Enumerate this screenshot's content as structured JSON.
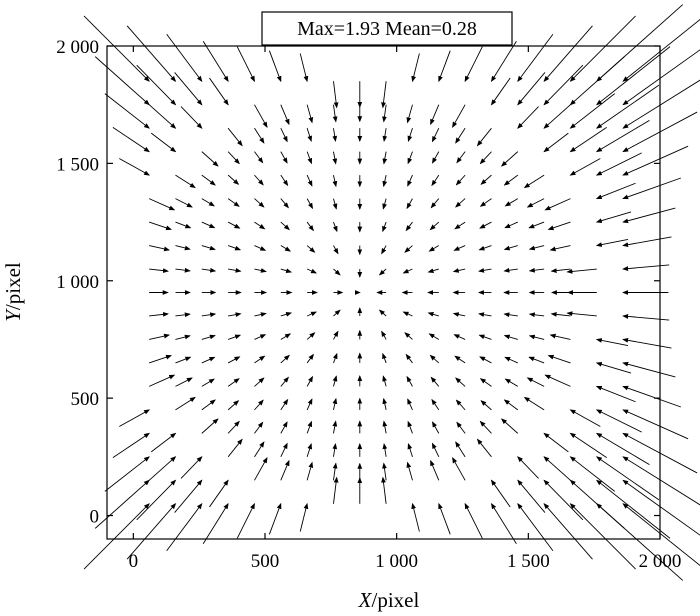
{
  "chart_data": {
    "type": "quiver",
    "title": "Max=1.93  Mean=0.28",
    "xlabel": {
      "var": "X",
      "unit": "/pixel"
    },
    "ylabel": {
      "var": "Y",
      "unit": "/pixel"
    },
    "xlim": [
      -100,
      2000
    ],
    "ylim": [
      -100,
      2000
    ],
    "xticks": [
      0,
      500,
      1000,
      1500,
      2000
    ],
    "xtick_labels": [
      "0",
      "500",
      "1 000",
      "1 500",
      "2 000"
    ],
    "yticks": [
      0,
      500,
      1000,
      1500,
      2000
    ],
    "ytick_labels": [
      "0",
      "500",
      "1 000",
      "1 500",
      "2 000"
    ],
    "grid": false,
    "field": {
      "x_start": 60,
      "x_end": 1860,
      "nx": 19,
      "y_start": 50,
      "y_end": 1850,
      "ny": 19,
      "center": [
        860,
        950
      ],
      "displacement_scale": 1.0,
      "description": "displacement vectors pointing toward the center, larger near the corners"
    }
  }
}
